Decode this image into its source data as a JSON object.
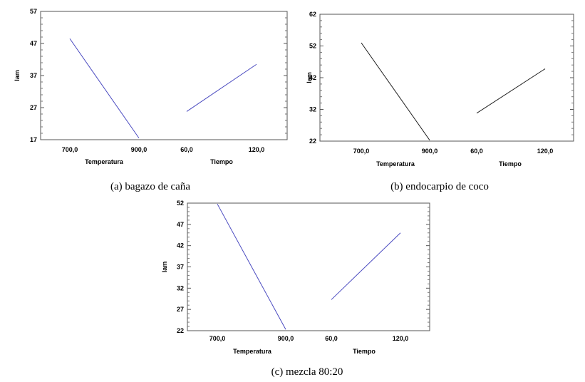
{
  "chart_data": [
    {
      "type": "line",
      "caption": "(a) bagazo de caña",
      "ylabel": "lam",
      "yticks": [
        17,
        27,
        37,
        47,
        57
      ],
      "ylim": [
        17,
        57
      ],
      "factors": [
        {
          "xlabel": "Temperatura",
          "ticks": [
            "700,0",
            "900,0"
          ],
          "values": [
            48.5,
            17.5
          ]
        },
        {
          "xlabel": "Tiempo",
          "ticks": [
            "60,0",
            "120,0"
          ],
          "values": [
            25.8,
            40.5
          ]
        }
      ],
      "line_color": "#4a4ac0"
    },
    {
      "type": "line",
      "caption": "(b) endocarpio de coco",
      "ylabel": "lam",
      "yticks": [
        22,
        32,
        42,
        52,
        62
      ],
      "ylim": [
        22,
        62
      ],
      "factors": [
        {
          "xlabel": "Temperatura",
          "ticks": [
            "700,0",
            "900,0"
          ],
          "values": [
            53.0,
            22.3
          ]
        },
        {
          "xlabel": "Tiempo",
          "ticks": [
            "60,0",
            "120,0"
          ],
          "values": [
            30.8,
            44.8
          ]
        }
      ],
      "line_color": "#222222"
    },
    {
      "type": "line",
      "caption": "(c) mezcla 80:20",
      "ylabel": "lam",
      "yticks": [
        22,
        27,
        32,
        37,
        42,
        47,
        52
      ],
      "ylim": [
        22,
        52
      ],
      "factors": [
        {
          "xlabel": "Temperatura",
          "ticks": [
            "700,0",
            "900,0"
          ],
          "values": [
            51.8,
            22.3
          ]
        },
        {
          "xlabel": "Tiempo",
          "ticks": [
            "60,0",
            "120,0"
          ],
          "values": [
            29.3,
            45.0
          ]
        }
      ],
      "line_color": "#4a4ac0"
    }
  ]
}
